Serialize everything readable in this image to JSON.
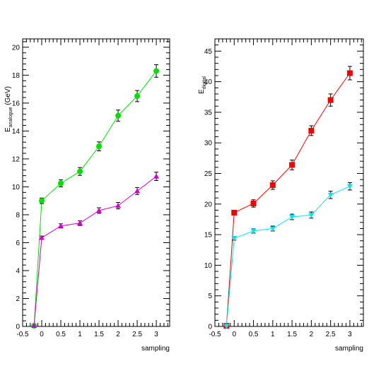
{
  "chart_data": [
    {
      "type": "line",
      "title": "",
      "xlabel": "sampling",
      "ylabel_main": "E",
      "ylabel_sub": "analogue",
      "ylabel_unit": " (GeV)",
      "xlim": [
        -0.5,
        3.35
      ],
      "ylim": [
        0,
        20.6
      ],
      "xticks": [
        -0.5,
        0,
        0.5,
        1,
        1.5,
        2,
        2.5,
        3
      ],
      "xtick_labels": [
        "-0.5",
        "0",
        "0.5",
        "1",
        "1.5",
        "2",
        "2.5",
        "3"
      ],
      "yticks": [
        0,
        2,
        4,
        6,
        8,
        10,
        12,
        14,
        16,
        18,
        20
      ],
      "ytick_labels": [
        "0",
        "2",
        "4",
        "6",
        "8",
        "10",
        "12",
        "14",
        "16",
        "18",
        "20"
      ],
      "series": [
        {
          "color": "#00dd00",
          "marker": "circle",
          "x": [
            -0.2,
            0,
            0.5,
            1,
            1.5,
            2,
            2.5,
            3
          ],
          "y": [
            0.05,
            9.0,
            10.25,
            11.1,
            12.9,
            15.1,
            16.5,
            18.3
          ],
          "err": [
            0,
            0.2,
            0.25,
            0.28,
            0.32,
            0.4,
            0.4,
            0.45
          ]
        },
        {
          "color": "#cc00cc",
          "marker": "triangle-up",
          "x": [
            -0.2,
            0,
            0.5,
            1,
            1.5,
            2,
            2.5,
            3
          ],
          "y": [
            0.05,
            6.35,
            7.2,
            7.4,
            8.3,
            8.65,
            9.7,
            10.75
          ],
          "err": [
            0,
            0.12,
            0.15,
            0.17,
            0.2,
            0.23,
            0.25,
            0.3
          ]
        }
      ]
    },
    {
      "type": "line",
      "title": "",
      "xlabel": "sampling",
      "ylabel_main": "E",
      "ylabel_sub": "digital",
      "ylabel_unit": "",
      "xlim": [
        -0.5,
        3.35
      ],
      "ylim": [
        0,
        47
      ],
      "xticks": [
        -0.5,
        0,
        0.5,
        1,
        1.5,
        2,
        2.5,
        3
      ],
      "xtick_labels": [
        "-0.5",
        "0",
        "0.5",
        "1",
        "1.5",
        "2",
        "2.5",
        "3"
      ],
      "yticks": [
        0,
        5,
        10,
        15,
        20,
        25,
        30,
        35,
        40,
        45
      ],
      "ytick_labels": [
        "0",
        "5",
        "10",
        "15",
        "20",
        "25",
        "30",
        "35",
        "40",
        "45"
      ],
      "series": [
        {
          "color": "#ee0000",
          "marker": "square",
          "x": [
            -0.2,
            0,
            0.5,
            1,
            1.5,
            2,
            2.5,
            3
          ],
          "y": [
            0.1,
            18.6,
            20.1,
            23.1,
            26.4,
            32.0,
            37.0,
            41.4
          ],
          "err": [
            0,
            0.4,
            0.6,
            0.7,
            0.8,
            0.8,
            1.0,
            1.1
          ]
        },
        {
          "color": "#00e5ee",
          "marker": "triangle-down",
          "x": [
            -0.2,
            0,
            0.5,
            1,
            1.5,
            2,
            2.5,
            3
          ],
          "y": [
            0.05,
            14.4,
            15.6,
            16.0,
            17.9,
            18.2,
            21.5,
            22.9
          ],
          "err": [
            0,
            0.3,
            0.35,
            0.4,
            0.45,
            0.5,
            0.6,
            0.6
          ]
        }
      ]
    }
  ]
}
